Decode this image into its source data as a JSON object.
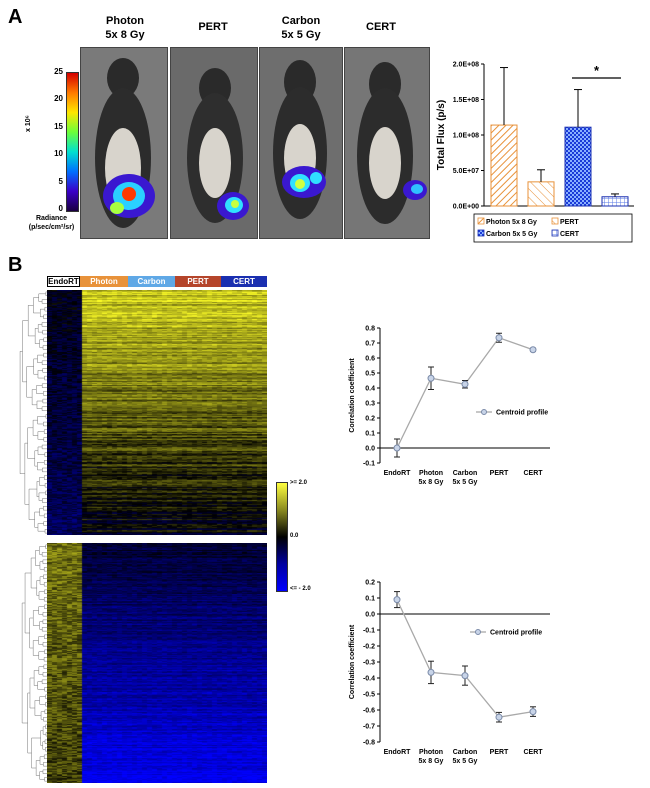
{
  "panel_a": {
    "letter": "A",
    "mice": [
      {
        "label_line1": "Photon",
        "label_line2": "5x 8 Gy"
      },
      {
        "label_line1": "PERT",
        "label_line2": ""
      },
      {
        "label_line1": "Carbon",
        "label_line2": "5x 5 Gy"
      },
      {
        "label_line1": "CERT",
        "label_line2": ""
      }
    ],
    "colorbar": {
      "ticks": [
        "25",
        "20",
        "15",
        "10",
        "5",
        "0"
      ],
      "unit": "x 10⁶",
      "label_line1": "Radiance",
      "label_line2": "(p/sec/cm²/sr)"
    }
  },
  "panel_b": {
    "letter": "B",
    "groups": [
      "EndoRT",
      "Photon",
      "Carbon",
      "PERT",
      "CERT"
    ],
    "heat_legend": {
      "max": ">= 2.0",
      "mid": "0.0",
      "min": "<= - 2.0"
    }
  },
  "colors": {
    "photon": "#e8923a",
    "carbon": "#5fa8e6",
    "pert": "#b5452b",
    "cert": "#1a2fb0",
    "endort": "#9a9a9a"
  },
  "chart_data": [
    {
      "type": "bar",
      "title": "",
      "ylabel": "Total Flux (p/s)",
      "ylim": [
        0,
        200000000
      ],
      "yticks": [
        "0.0E+00",
        "5.0E+07",
        "1.0E+08",
        "1.5E+08",
        "2.0E+08"
      ],
      "tick_values": [
        0,
        50000000,
        100000000,
        150000000,
        200000000
      ],
      "categories": [
        "Photon 5x 8 Gy",
        "PERT",
        "Carbon 5x 5 Gy",
        "CERT"
      ],
      "values": [
        114000000,
        34000000,
        111000000,
        13000000
      ],
      "errors": [
        81000000,
        17000000,
        53000000,
        4000000
      ],
      "legend": [
        "Photon 5x 8 Gy",
        "PERT",
        "Carbon 5x 5 Gy",
        "CERT"
      ],
      "annotation": "*"
    },
    {
      "type": "line",
      "ylabel": "Correlation coefficient",
      "ylim": [
        -0.1,
        0.8
      ],
      "yticks": [
        "-0.1",
        "0.0",
        "0.1",
        "0.2",
        "0.3",
        "0.4",
        "0.5",
        "0.6",
        "0.7",
        "0.8"
      ],
      "tick_values": [
        -0.1,
        0,
        0.1,
        0.2,
        0.3,
        0.4,
        0.5,
        0.6,
        0.7,
        0.8
      ],
      "categories": [
        [
          "EndoRT"
        ],
        [
          "Photon",
          "5x 8 Gy"
        ],
        [
          "Carbon",
          "5x 5 Gy"
        ],
        [
          "PERT"
        ],
        [
          "CERT"
        ]
      ],
      "values": [
        0.0,
        0.465,
        0.425,
        0.735,
        0.655
      ],
      "errors": [
        0.06,
        0.075,
        0.025,
        0.03,
        0.01
      ],
      "legend": "Centroid profile"
    },
    {
      "type": "line",
      "ylabel": "Correlation coefficient",
      "ylim": [
        -0.8,
        0.2
      ],
      "yticks": [
        "-0.8",
        "-0.7",
        "-0.6",
        "-0.5",
        "-0.4",
        "-0.3",
        "-0.2",
        "-0.1",
        "0.0",
        "0.1",
        "0.2"
      ],
      "tick_values": [
        -0.8,
        -0.7,
        -0.6,
        -0.5,
        -0.4,
        -0.3,
        -0.2,
        -0.1,
        0,
        0.1,
        0.2
      ],
      "categories": [
        [
          "EndoRT"
        ],
        [
          "Photon",
          "5x 8 Gy"
        ],
        [
          "Carbon",
          "5x 5 Gy"
        ],
        [
          "PERT"
        ],
        [
          "CERT"
        ]
      ],
      "values": [
        0.09,
        -0.365,
        -0.385,
        -0.645,
        -0.61
      ],
      "errors": [
        0.05,
        0.07,
        0.06,
        0.03,
        0.03
      ],
      "legend": "Centroid profile"
    }
  ]
}
